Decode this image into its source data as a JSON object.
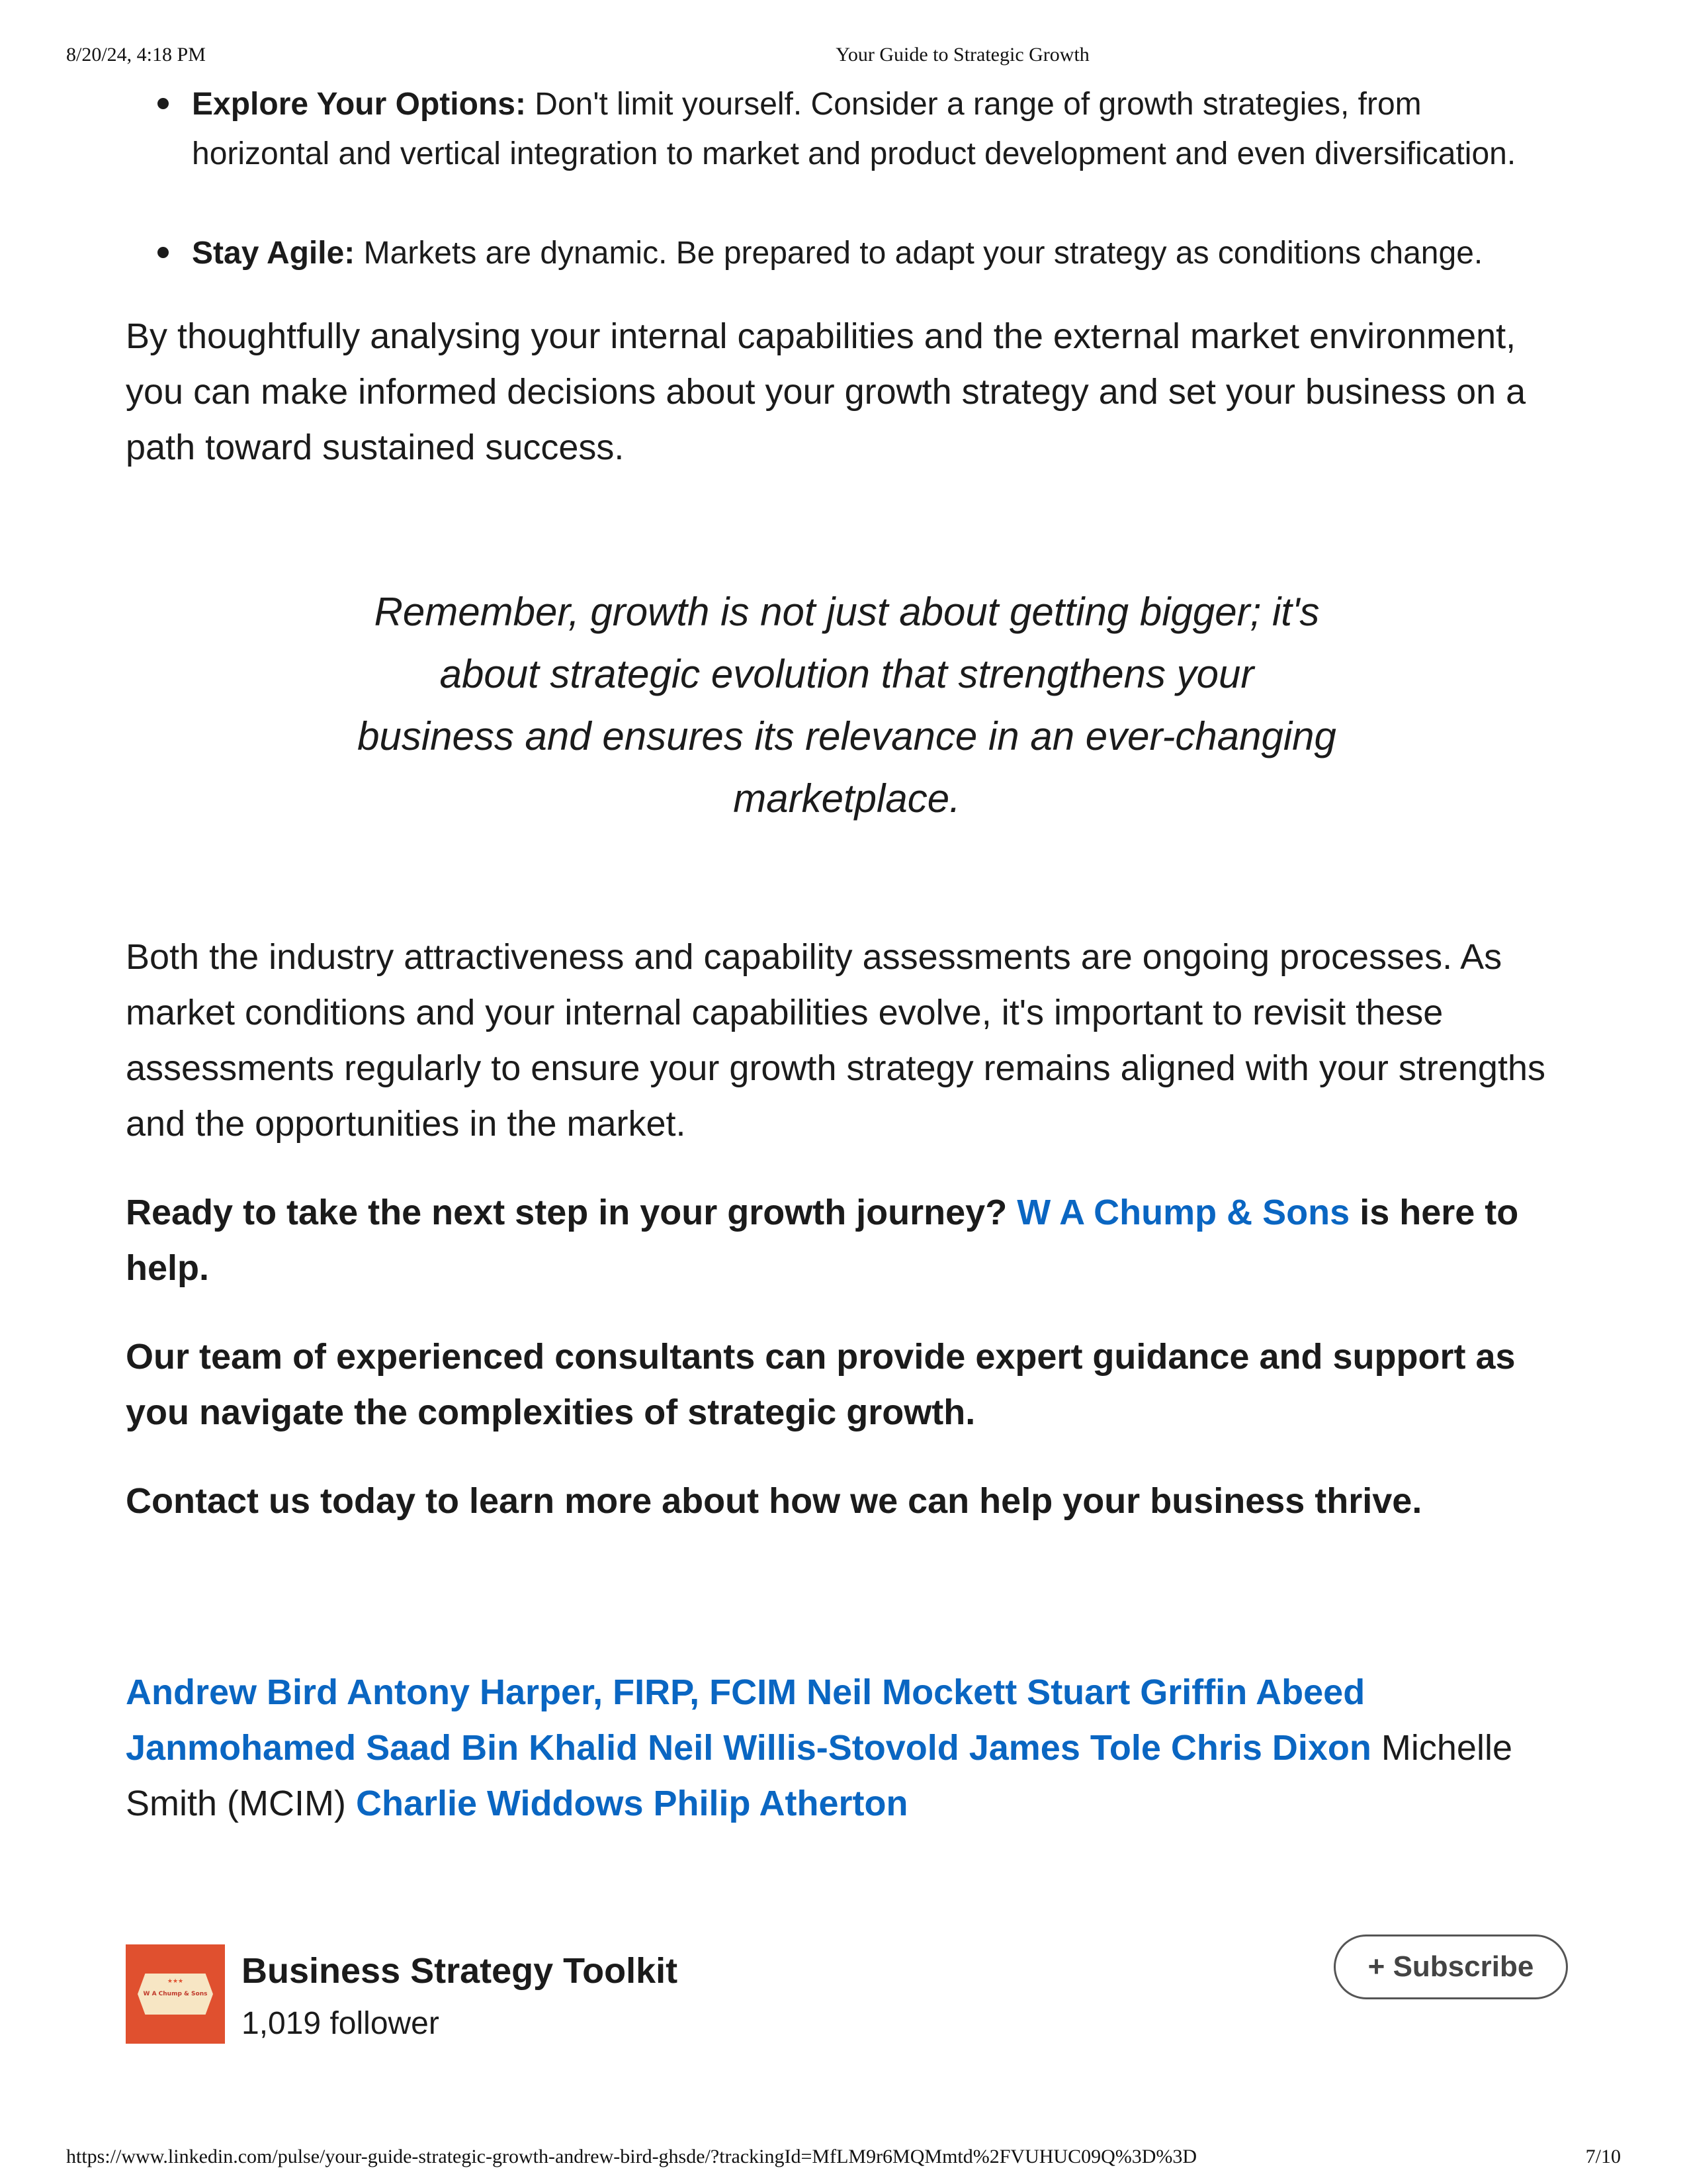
{
  "print_header": {
    "datetime": "8/20/24, 4:18 PM",
    "page_title": "Your Guide to Strategic Growth"
  },
  "bullets": [
    {
      "label": "Explore Your Options:",
      "text": " Don't limit yourself. Consider a range of growth strategies, from horizontal and vertical integration to market and product development and even diversification."
    },
    {
      "label": "Stay Agile:",
      "text": " Markets are dynamic. Be prepared to adapt your strategy as conditions change."
    }
  ],
  "paragraph_1": "By thoughtfully analysing your internal capabilities and the external market environment, you can make informed decisions about your growth strategy and set your business on a path toward sustained success.",
  "quote": "Remember, growth is not just about getting bigger; it's about strategic evolution that strengthens your business and ensures its relevance in an ever-changing marketplace.",
  "paragraph_2": "Both the industry attractiveness and capability assessments are ongoing processes. As market conditions and your internal capabilities evolve, it's important to revisit these assessments regularly to ensure your growth strategy remains aligned with your strengths and the opportunities in the market.",
  "cta": {
    "line1_before": "Ready to take the next step in your growth journey? ",
    "company_link": "W A Chump & Sons",
    "line1_after": " is here to help.",
    "line2": "Our team of experienced consultants can provide expert guidance and support as you navigate the complexities of strategic growth.",
    "line3": "Contact us today to learn more about how we can help your business thrive."
  },
  "tags": {
    "linked_1": "Andrew Bird Antony Harper, FIRP, FCIM Neil Mockett Stuart Griffin Abeed Janmohamed Saad Bin Khalid Neil Willis-Stovold James Tole Chris Dixon",
    "plain": " Michelle Smith (MCIM) ",
    "linked_2": "Charlie Widdows Philip Atherton"
  },
  "newsletter": {
    "title": "Business Strategy Toolkit",
    "followers": "1,019 follower",
    "subscribe_label": "+ Subscribe",
    "logo_text": "W A Chump & Sons",
    "logo_color": "#e0502f"
  },
  "print_footer": {
    "url": "https://www.linkedin.com/pulse/your-guide-strategic-growth-andrew-bird-ghsde/?trackingId=MfLM9r6MQMmtd%2FVUHUC09Q%3D%3D",
    "page_number": "7/10"
  },
  "colors": {
    "link": "#0a66c2",
    "text": "#1b1b1b"
  }
}
